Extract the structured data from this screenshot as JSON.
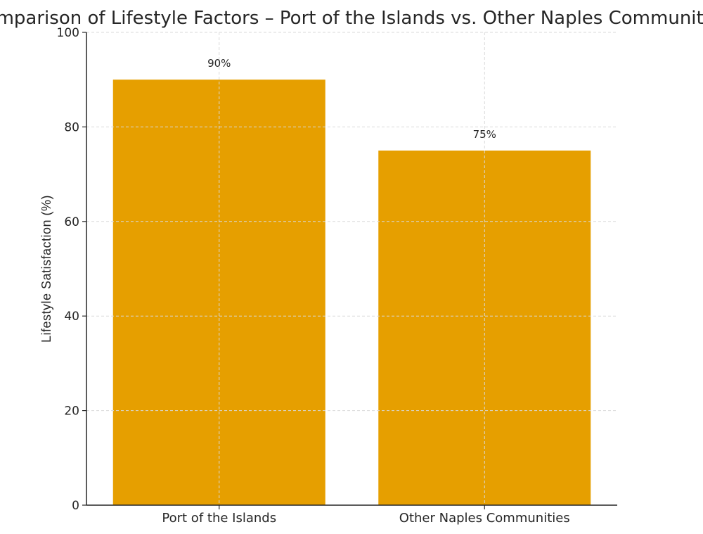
{
  "chart_data": {
    "type": "bar",
    "title": "Comparison of Lifestyle Factors – Port of the Islands vs. Other Naples Communities",
    "xlabel": "",
    "ylabel": "Lifestyle Satisfaction (%)",
    "categories": [
      "Port of the Islands",
      "Other Naples Communities"
    ],
    "values": [
      90,
      75
    ],
    "data_labels": [
      "90%",
      "75%"
    ],
    "ylim": [
      0,
      100
    ],
    "yticks": [
      0,
      20,
      40,
      60,
      80,
      100
    ],
    "grid": true,
    "bar_color": "#E69F00"
  }
}
